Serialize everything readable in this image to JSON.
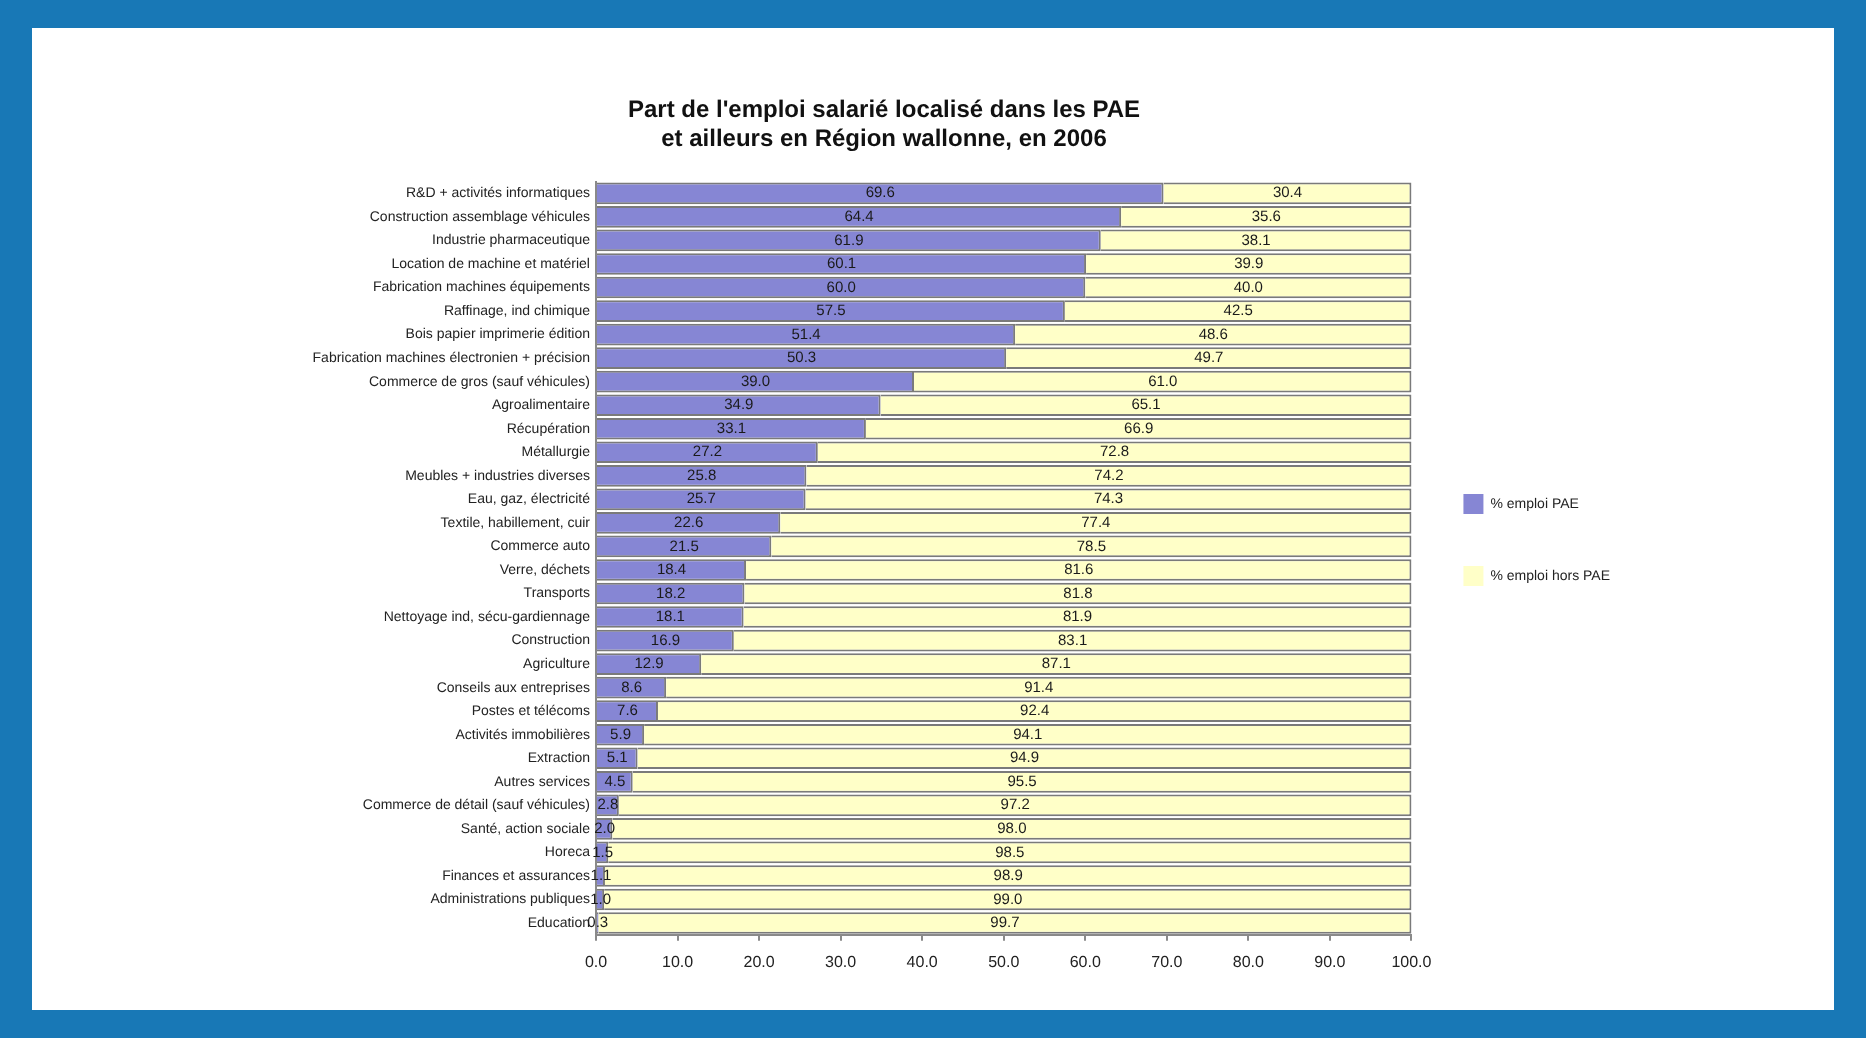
{
  "chart_data": {
    "type": "bar",
    "orientation": "horizontal",
    "stacked": true,
    "title": "Part de l'emploi salarié localisé dans les PAE\net ailleurs en Région wallonne, en 2006",
    "categories": [
      "R&D + activités informatiques",
      "Construction assemblage véhicules",
      "Industrie pharmaceutique",
      "Location de machine et matériel",
      "Fabrication machines équipements",
      "Raffinage, ind chimique",
      "Bois papier imprimerie édition",
      "Fabrication machines électronien + précision",
      "Commerce de gros (sauf véhicules)",
      "Agroalimentaire",
      "Récupération",
      "Métallurgie",
      "Meubles + industries diverses",
      "Eau, gaz, électricité",
      "Textile, habillement, cuir",
      "Commerce auto",
      "Verre, déchets",
      "Transports",
      "Nettoyage ind, sécu-gardiennage",
      "Construction",
      "Agriculture",
      "Conseils aux entreprises",
      "Postes et télécoms",
      "Activités immobilières",
      "Extraction",
      "Autres services",
      "Commerce de détail (sauf véhicules)",
      "Santé, action sociale",
      "Horeca",
      "Finances et assurances",
      "Administrations publiques",
      "Education"
    ],
    "series": [
      {
        "name": "% emploi PAE",
        "color": "#8686d4",
        "values": [
          69.6,
          64.4,
          61.9,
          60.1,
          60.0,
          57.5,
          51.4,
          50.3,
          39.0,
          34.9,
          33.1,
          27.2,
          25.8,
          25.7,
          22.6,
          21.5,
          18.4,
          18.2,
          18.1,
          16.9,
          12.9,
          8.6,
          7.6,
          5.9,
          5.1,
          4.5,
          2.8,
          2.0,
          1.5,
          1.1,
          1.0,
          0.3
        ],
        "value_labels": [
          "69.6",
          "64.4",
          "61.9",
          "60.1",
          "60.0",
          "57.5",
          "51.4",
          "50.3",
          "39.0",
          "34.9",
          "33.1",
          "27.2",
          "25.8",
          "25.7",
          "22.6",
          "21.5",
          "18.4",
          "18.2",
          "18.1",
          "16.9",
          "12.9",
          "8.6",
          "7.6",
          "5.9",
          "5.1",
          "4.5",
          "2.8",
          "2.0",
          "1.5",
          "1.1",
          "1.0",
          "0.3"
        ]
      },
      {
        "name": "% emploi hors PAE",
        "color": "#ffffc8",
        "values": [
          30.4,
          35.6,
          38.1,
          39.9,
          40.0,
          42.5,
          48.6,
          49.7,
          61.0,
          65.1,
          66.9,
          72.8,
          74.2,
          74.3,
          77.4,
          78.5,
          81.6,
          81.8,
          81.9,
          83.1,
          87.1,
          91.4,
          92.4,
          94.1,
          94.9,
          95.5,
          97.2,
          98.0,
          98.5,
          98.9,
          99.0,
          99.7
        ],
        "value_labels": [
          "30.4",
          "35.6",
          "38.1",
          "39.9",
          "40.0",
          "42.5",
          "48.6",
          "49.7",
          "61.0",
          "65.1",
          "66.9",
          "72.8",
          "74.2",
          "74.3",
          "77.4",
          "78.5",
          "81.6",
          "81.8",
          "81.9",
          "83.1",
          "87.1",
          "91.4",
          "92.4",
          "94.1",
          "94.9",
          "95.5",
          "97.2",
          "98.0",
          "98.5",
          "98.9",
          "99.0",
          "99.7"
        ]
      }
    ],
    "xlim": [
      0,
      100
    ],
    "xticks": [
      {
        "value": 0,
        "label": "0.0"
      },
      {
        "value": 10,
        "label": "10.0"
      },
      {
        "value": 20,
        "label": "20.0"
      },
      {
        "value": 30,
        "label": "30.0"
      },
      {
        "value": 40,
        "label": "40.0"
      },
      {
        "value": 50,
        "label": "50.0"
      },
      {
        "value": 60,
        "label": "60.0"
      },
      {
        "value": 70,
        "label": "70.0"
      },
      {
        "value": 80,
        "label": "80.0"
      },
      {
        "value": 90,
        "label": "90.0"
      },
      {
        "value": 100,
        "label": "100.0"
      }
    ],
    "legend": "right",
    "grid": false
  }
}
